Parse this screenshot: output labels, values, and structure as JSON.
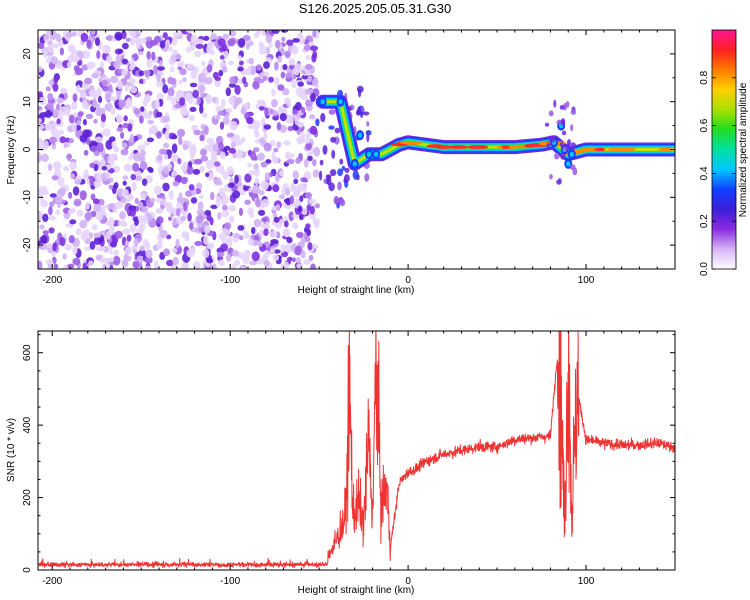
{
  "title": "S126.2025.205.05.31.G30",
  "chart_data": [
    {
      "type": "heatmap",
      "xlabel": "Height of straight line (km)",
      "ylabel": "Frequency (Hz)",
      "xlim": [
        -208,
        150
      ],
      "ylim": [
        -25,
        25
      ],
      "x_ticks": [
        -200,
        -100,
        0,
        100
      ],
      "y_ticks": [
        -20,
        -10,
        0,
        10,
        20
      ],
      "colorbar": {
        "label": "Normalized spectral amplitude",
        "range": [
          0,
          1
        ],
        "ticks": [
          "0.0",
          "0.2",
          "0.4",
          "0.6",
          "0.8"
        ],
        "colors": [
          "#ffffff",
          "#d7b3f6",
          "#8a2be2",
          "#3c1fd8",
          "#1040ff",
          "#00c8ff",
          "#00e0a0",
          "#22dd22",
          "#a8e000",
          "#ffd000",
          "#ff7a00",
          "#ff2020",
          "#ff1493"
        ]
      },
      "noise_region_km": [
        -208,
        -55
      ],
      "tone_frequency_hz": [
        {
          "x": -48,
          "y": 10
        },
        {
          "x": -38,
          "y": 10
        },
        {
          "x": -30,
          "y": -3
        },
        {
          "x": -22,
          "y": -1
        },
        {
          "x": -15,
          "y": -1
        },
        {
          "x": -5,
          "y": 1
        },
        {
          "x": 0,
          "y": 1.5
        },
        {
          "x": 20,
          "y": 0.5
        },
        {
          "x": 40,
          "y": 0.5
        },
        {
          "x": 60,
          "y": 0.5
        },
        {
          "x": 75,
          "y": 1
        },
        {
          "x": 82,
          "y": 1.5
        },
        {
          "x": 90,
          "y": -1
        },
        {
          "x": 100,
          "y": 0
        },
        {
          "x": 120,
          "y": 0
        },
        {
          "x": 150,
          "y": 0
        }
      ]
    },
    {
      "type": "line",
      "xlabel": "Height of straight line (km)",
      "ylabel": "SNR (10 * v/v)",
      "xlim": [
        -208,
        150
      ],
      "ylim": [
        0,
        660
      ],
      "x_ticks": [
        -200,
        -100,
        0,
        100
      ],
      "y_ticks": [
        0,
        200,
        400,
        600
      ],
      "color": "#ee3333",
      "series": [
        {
          "x": [
            -208,
            -150,
            -100,
            -60,
            -50,
            -42,
            -35,
            -33,
            -31,
            -28,
            -25,
            -22,
            -20,
            -18,
            -15,
            -12,
            -10,
            -5,
            0,
            5,
            10,
            20,
            30,
            40,
            50,
            60,
            70,
            80,
            85,
            88,
            90,
            92,
            95,
            100,
            110,
            120,
            130,
            140,
            150
          ],
          "y": [
            15,
            15,
            15,
            15,
            20,
            60,
            150,
            520,
            150,
            190,
            120,
            370,
            150,
            560,
            170,
            240,
            60,
            240,
            270,
            280,
            300,
            320,
            330,
            340,
            340,
            360,
            365,
            370,
            660,
            100,
            640,
            150,
            500,
            360,
            350,
            345,
            345,
            350,
            340
          ]
        }
      ]
    }
  ]
}
